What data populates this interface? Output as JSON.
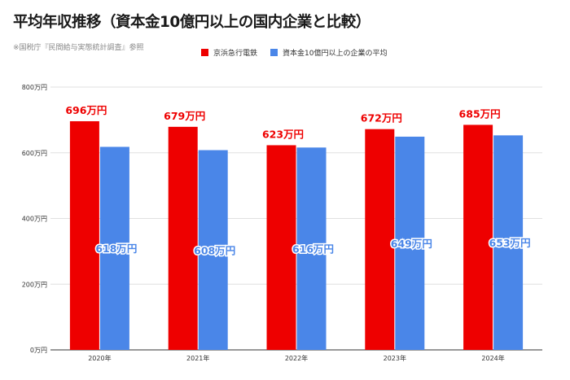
{
  "title": "平均年収推移（資本金10億円以上の国内企業と比較）",
  "source_note": "※国税庁『民間給与実態統計調査』参照",
  "colors": {
    "series1": "#ee0000",
    "series2": "#4a86e8",
    "grid": "#e0e0e0",
    "axis": "#333333"
  },
  "chart_data": {
    "type": "bar",
    "title": "平均年収推移（資本金10億円以上の国内企業と比較）",
    "categories": [
      "2020年",
      "2021年",
      "2022年",
      "2023年",
      "2024年"
    ],
    "series": [
      {
        "name": "京浜急行電鉄",
        "values": [
          696,
          679,
          623,
          672,
          685
        ],
        "labels": [
          "696万円",
          "679万円",
          "623万円",
          "672万円",
          "685万円"
        ]
      },
      {
        "name": "資本金10億円以上の企業の平均",
        "values": [
          618,
          608,
          616,
          649,
          653
        ],
        "labels": [
          "618万円",
          "608万円",
          "616万円",
          "649万円",
          "653万円"
        ]
      }
    ],
    "ylim": [
      0,
      800
    ],
    "yticks": [
      0,
      200,
      400,
      600,
      800
    ],
    "ytick_labels": [
      "0万円",
      "200万円",
      "400万円",
      "600万円",
      "800万円"
    ],
    "grid": true,
    "legend": "top"
  }
}
